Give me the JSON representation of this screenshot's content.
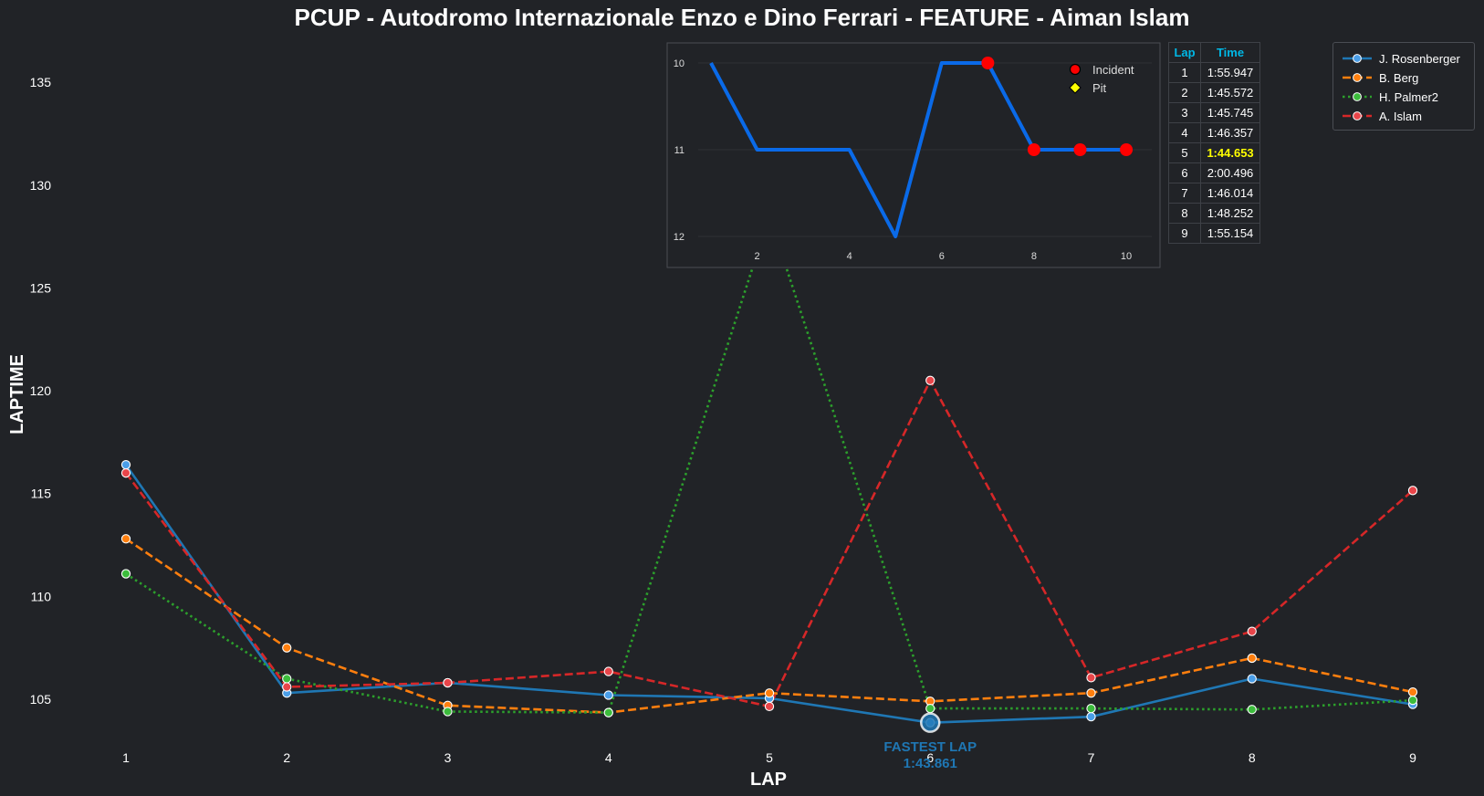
{
  "title": "PCUP - Autodromo Internazionale Enzo e Dino Ferrari - FEATURE - Aiman Islam",
  "chart_data": [
    {
      "type": "line",
      "xlabel": "LAP",
      "ylabel": "LAPTIME",
      "x": [
        1,
        2,
        3,
        4,
        5,
        6,
        7,
        8,
        9
      ],
      "xticks": [
        "1",
        "2",
        "3",
        "4",
        "5",
        "6",
        "7",
        "8",
        "9"
      ],
      "yticks": [
        "105",
        "110",
        "115",
        "120",
        "125",
        "130",
        "135"
      ],
      "ylim": [
        102.5,
        137.5
      ],
      "grid": false,
      "legend_position": "top-right",
      "series": [
        {
          "name": "J. Rosenberger",
          "color": "#1f77b4",
          "marker_fill": "#4a9ee8",
          "dash": "solid",
          "values": [
            116.4,
            105.3,
            105.8,
            105.2,
            105.05,
            103.86,
            104.15,
            106.0,
            104.75
          ]
        },
        {
          "name": "B. Berg",
          "color": "#ff7f0e",
          "marker_fill": "#ff7f0e",
          "dash": "dashed",
          "values": [
            112.8,
            107.5,
            104.7,
            104.35,
            105.3,
            104.9,
            105.3,
            107.0,
            105.35
          ]
        },
        {
          "name": "H. Palmer2",
          "color": "#2ca02c",
          "marker_fill": "#3cbc3c",
          "dash": "dotted",
          "values": [
            111.1,
            106.0,
            104.4,
            104.35,
            128.5,
            104.55,
            104.55,
            104.5,
            104.95
          ]
        },
        {
          "name": "A. Islam",
          "color": "#d62728",
          "marker_fill": "#e8454a",
          "dash": "dashed",
          "values": [
            116.0,
            105.6,
            105.8,
            106.35,
            104.65,
            120.5,
            106.05,
            108.3,
            115.15
          ]
        }
      ],
      "annotations": [
        {
          "label": "FASTEST LAP",
          "value": "1:43.861",
          "x": 6,
          "y": 103.86,
          "color": "#1f77b4"
        }
      ]
    },
    {
      "type": "line",
      "title": "",
      "x": [
        1,
        2,
        3,
        4,
        5,
        6,
        7,
        8,
        9,
        10
      ],
      "values": [
        10,
        11,
        11,
        11,
        12,
        10,
        10,
        11,
        11,
        11
      ],
      "xticks": [
        "2",
        "4",
        "6",
        "8",
        "10"
      ],
      "yticks": [
        "10",
        "11",
        "12"
      ],
      "ylim": [
        12,
        10
      ],
      "y_inverted": true,
      "xlim": [
        0.1,
        10.6
      ],
      "line_color": "#0a6ae8",
      "incident_laps": [
        7,
        8,
        9,
        10
      ],
      "pit_laps": [],
      "legend": [
        {
          "label": "Incident",
          "color": "#ff0000",
          "marker": "circle"
        },
        {
          "label": "Pit",
          "color": "#ffff00",
          "marker": "diamond"
        }
      ]
    }
  ],
  "lap_table": {
    "headers": [
      "Lap",
      "Time"
    ],
    "rows": [
      [
        "1",
        "1:55.947"
      ],
      [
        "2",
        "1:45.572"
      ],
      [
        "3",
        "1:45.745"
      ],
      [
        "4",
        "1:46.357"
      ],
      [
        "5",
        "1:44.653"
      ],
      [
        "6",
        "2:00.496"
      ],
      [
        "7",
        "1:46.014"
      ],
      [
        "8",
        "1:48.252"
      ],
      [
        "9",
        "1:55.154"
      ]
    ],
    "highlight_row": 4,
    "highlight_color": "#ffff00"
  }
}
